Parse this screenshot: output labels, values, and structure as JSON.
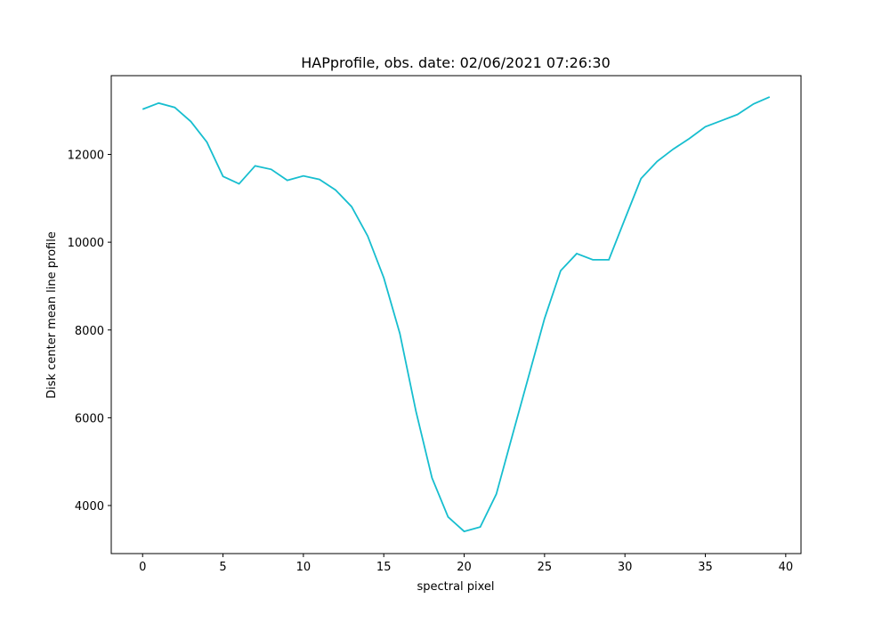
{
  "chart_data": {
    "type": "line",
    "title": "HAPprofile, obs. date: 02/06/2021 07:26:30",
    "xlabel": "spectral pixel",
    "ylabel": "Disk center mean line profile",
    "x": [
      0,
      1,
      2,
      3,
      4,
      5,
      6,
      7,
      8,
      9,
      10,
      11,
      12,
      13,
      14,
      15,
      16,
      17,
      18,
      19,
      20,
      21,
      22,
      23,
      24,
      25,
      26,
      27,
      28,
      29,
      30,
      31,
      32,
      33,
      34,
      35,
      36,
      37,
      38,
      39
    ],
    "series": [
      {
        "color": "#17becf",
        "values": [
          13030,
          13170,
          13070,
          12750,
          12280,
          11500,
          11330,
          11740,
          11660,
          11410,
          11510,
          11430,
          11190,
          10810,
          10140,
          9190,
          7920,
          6150,
          4630,
          3740,
          3410,
          3510,
          4260,
          5600,
          6930,
          8260,
          9350,
          9740,
          9600,
          9600,
          10530,
          11450,
          11840,
          12120,
          12360,
          12630,
          12770,
          12910,
          13150,
          13310
        ]
      }
    ],
    "xlim": [
      -1.95,
      40.95
    ],
    "xticks": [
      0,
      5,
      10,
      15,
      20,
      25,
      30,
      35,
      40
    ],
    "ylim": [
      2905,
      13795
    ],
    "yticks": [
      4000,
      6000,
      8000,
      10000,
      12000
    ],
    "grid": false
  }
}
